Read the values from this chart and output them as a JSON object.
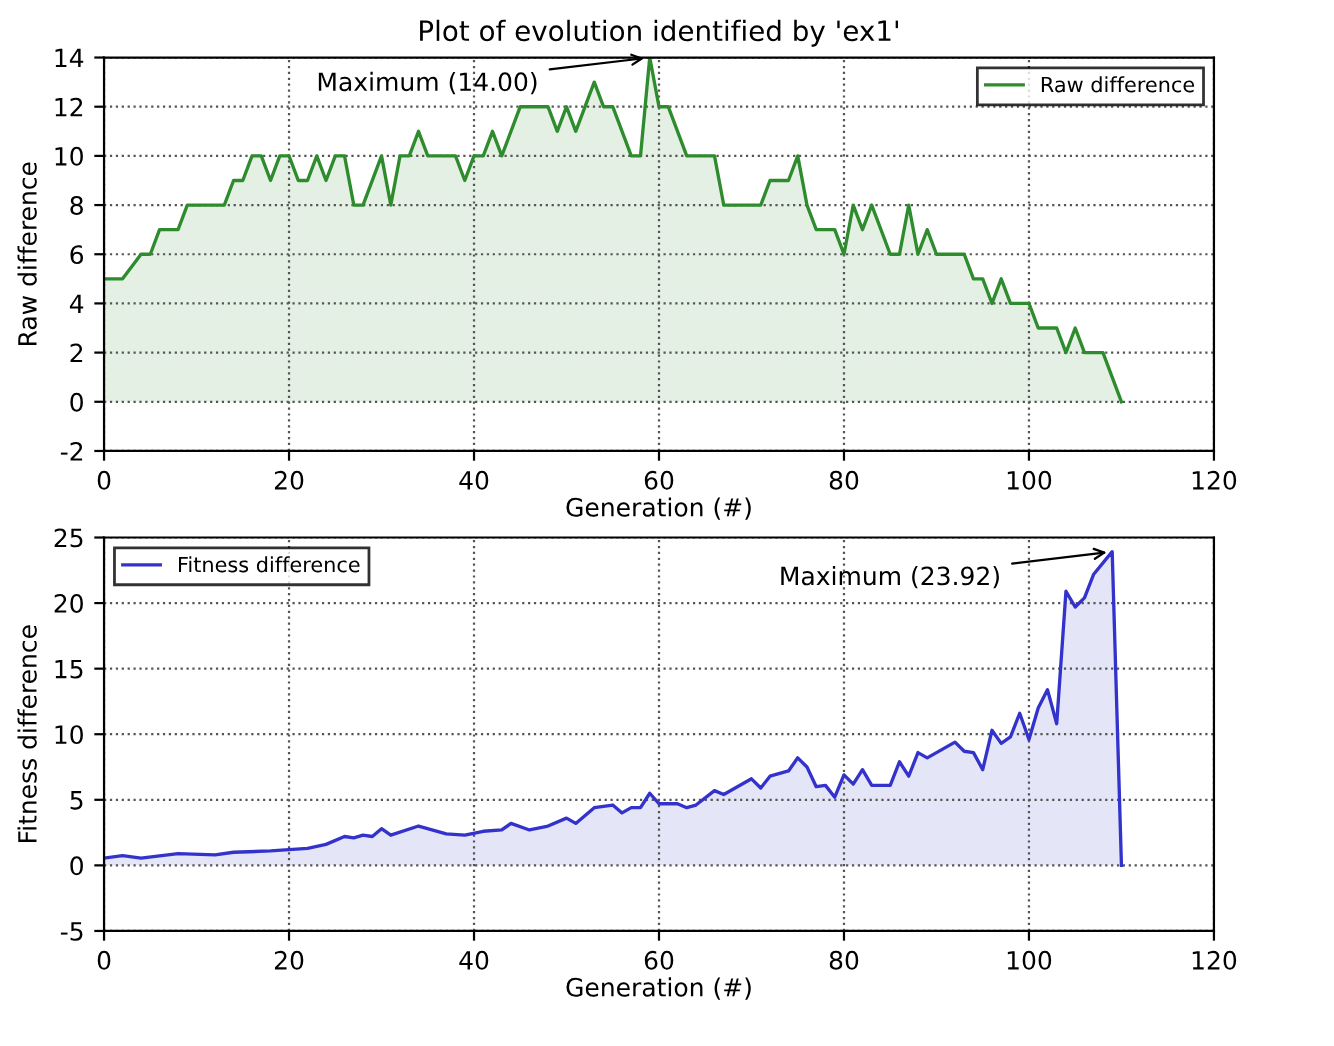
{
  "chart_data": [
    {
      "type": "area",
      "title": "Plot of evolution identified by 'ex1'",
      "xlabel": "Generation (#)",
      "ylabel": "Raw difference",
      "x": [
        0,
        2,
        4,
        5,
        6,
        8,
        9,
        13,
        14,
        15,
        16,
        17,
        18,
        19,
        20,
        21,
        22,
        23,
        24,
        25,
        26,
        27,
        28,
        30,
        31,
        32,
        33,
        34,
        35,
        38,
        39,
        40,
        41,
        42,
        43,
        45,
        48,
        49,
        50,
        51,
        53,
        54,
        55,
        57,
        58,
        59,
        60,
        61,
        63,
        66,
        67,
        71,
        72,
        74,
        75,
        76,
        77,
        79,
        80,
        81,
        82,
        83,
        85,
        86,
        87,
        88,
        89,
        90,
        93,
        94,
        95,
        96,
        97,
        98,
        100,
        101,
        103,
        104,
        105,
        106,
        108,
        110
      ],
      "series": [
        {
          "name": "Raw difference",
          "color": "#2e8b2e",
          "values": [
            5,
            5,
            6,
            6,
            7,
            7,
            8,
            8,
            9,
            9,
            10,
            10,
            9,
            10,
            10,
            9,
            9,
            10,
            9,
            10,
            10,
            8,
            8,
            10,
            8,
            10,
            10,
            11,
            10,
            10,
            9,
            10,
            10,
            11,
            10,
            12,
            12,
            11,
            12,
            11,
            13,
            12,
            12,
            10,
            10,
            14,
            12,
            12,
            10,
            10,
            8,
            8,
            9,
            9,
            10,
            8,
            7,
            7,
            6,
            8,
            7,
            8,
            6,
            6,
            8,
            6,
            7,
            6,
            6,
            5,
            5,
            4,
            5,
            4,
            4,
            3,
            3,
            2,
            3,
            2,
            2,
            0
          ]
        }
      ],
      "annotations": [
        {
          "text": "Maximum (14.00)",
          "x": 59,
          "y": 14
        }
      ],
      "xlim": [
        0,
        120
      ],
      "xticks": [
        0,
        20,
        40,
        60,
        80,
        100,
        120
      ],
      "ylim": [
        -2,
        14
      ],
      "yticks": [
        -2,
        0,
        2,
        4,
        6,
        8,
        10,
        12,
        14
      ],
      "grid": true,
      "legend": "top right"
    },
    {
      "type": "area",
      "xlabel": "Generation (#)",
      "ylabel": "Fitness difference",
      "x": [
        0,
        2,
        4,
        8,
        12,
        14,
        18,
        22,
        24,
        26,
        27,
        28,
        29,
        30,
        31,
        34,
        37,
        39,
        41,
        43,
        44,
        46,
        48,
        50,
        51,
        53,
        55,
        56,
        57,
        58,
        59,
        60,
        62,
        63,
        64,
        66,
        67,
        70,
        71,
        72,
        74,
        75,
        76,
        77,
        78,
        79,
        80,
        81,
        82,
        83,
        85,
        86,
        87,
        88,
        89,
        90,
        92,
        93,
        94,
        95,
        96,
        97,
        98,
        99,
        100,
        101,
        102,
        103,
        104,
        105,
        106,
        107,
        109,
        110
      ],
      "series": [
        {
          "name": "Fitness difference",
          "color": "#3333cc",
          "values": [
            0.55,
            0.75,
            0.55,
            0.9,
            0.8,
            1.0,
            1.1,
            1.3,
            1.6,
            2.2,
            2.1,
            2.3,
            2.2,
            2.8,
            2.3,
            3.0,
            2.4,
            2.3,
            2.6,
            2.7,
            3.2,
            2.7,
            3.0,
            3.6,
            3.2,
            4.4,
            4.6,
            4.0,
            4.4,
            4.4,
            5.5,
            4.7,
            4.7,
            4.4,
            4.6,
            5.7,
            5.4,
            6.6,
            5.9,
            6.8,
            7.2,
            8.2,
            7.5,
            6.0,
            6.1,
            5.2,
            6.9,
            6.2,
            7.3,
            6.1,
            6.1,
            7.9,
            6.8,
            8.6,
            8.2,
            8.6,
            9.4,
            8.7,
            8.6,
            7.3,
            10.3,
            9.3,
            9.8,
            11.6,
            9.6,
            12.0,
            13.4,
            10.8,
            20.9,
            19.7,
            20.4,
            22.2,
            23.92,
            0
          ]
        }
      ],
      "annotations": [
        {
          "text": "Maximum (23.92)",
          "x": 109,
          "y": 23.92
        }
      ],
      "xlim": [
        0,
        120
      ],
      "xticks": [
        0,
        20,
        40,
        60,
        80,
        100,
        120
      ],
      "ylim": [
        -5,
        25
      ],
      "yticks": [
        -5,
        0,
        5,
        10,
        15,
        20,
        25
      ],
      "grid": true,
      "legend": "top left"
    }
  ]
}
